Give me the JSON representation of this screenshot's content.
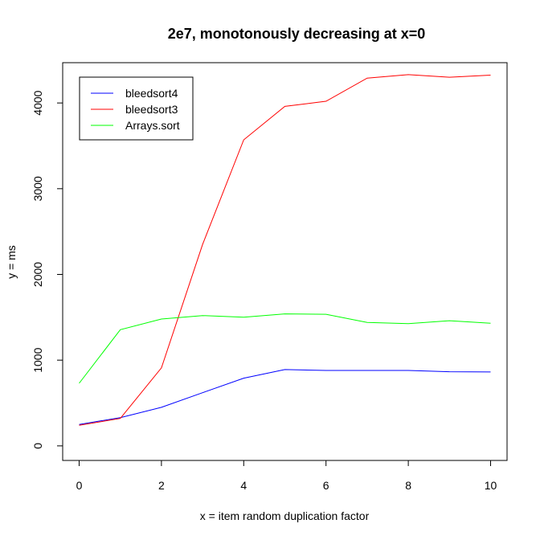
{
  "chart_data": {
    "type": "line",
    "title": "2e7, monotonously decreasing at x=0",
    "xlabel": "x = item random duplication factor",
    "ylabel": "y = ms",
    "x": [
      0,
      1,
      2,
      3,
      4,
      5,
      6,
      7,
      8,
      9,
      10
    ],
    "xlim": [
      -0.4,
      10.4
    ],
    "ylim": [
      -170,
      4470
    ],
    "xticks": [
      "0",
      "2",
      "4",
      "6",
      "8",
      "10"
    ],
    "yticks": [
      "0",
      "1000",
      "2000",
      "3000",
      "4000"
    ],
    "grid": false,
    "legend_position": "top-left",
    "series": [
      {
        "name": "bleedsort4",
        "color": "#0000ff",
        "values": [
          250,
          330,
          450,
          620,
          790,
          890,
          880,
          880,
          880,
          865,
          862
        ]
      },
      {
        "name": "bleedsort3",
        "color": "#ff0000",
        "values": [
          240,
          320,
          910,
          2350,
          3570,
          3960,
          4020,
          4290,
          4330,
          4300,
          4325
        ]
      },
      {
        "name": "Arrays.sort",
        "color": "#00ff00",
        "values": [
          730,
          1355,
          1480,
          1520,
          1500,
          1540,
          1535,
          1440,
          1425,
          1460,
          1430
        ]
      }
    ]
  }
}
